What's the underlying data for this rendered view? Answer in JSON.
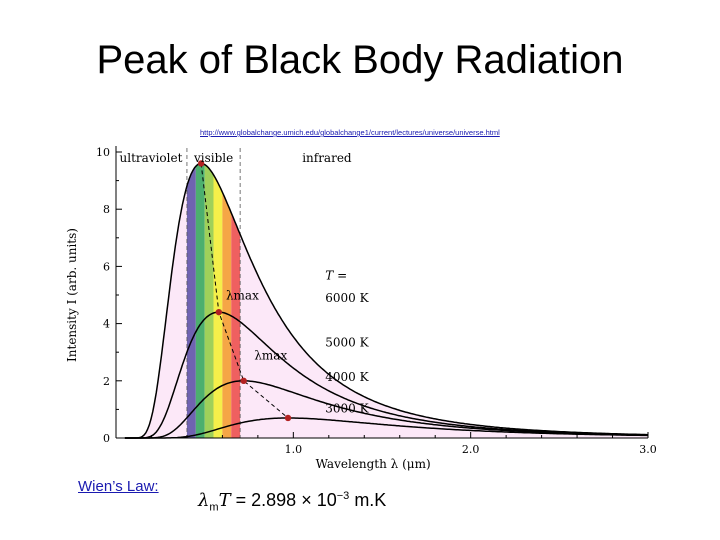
{
  "slide": {
    "title": "Peak of Black Body Radiation",
    "source_url": "http://www.globalchange.umich.edu/globalchange1/current/lectures/universe/universe.html",
    "law_label": "Wien’s Law:",
    "formula": {
      "symbol": "λ",
      "subscript": "m",
      "variable": "T",
      "equals": "= 2.898",
      "times": "× 10",
      "exponent": "−3",
      "unit": "m.K"
    }
  },
  "colors": {
    "background_fill": "#fce8f8",
    "curve": "#000000",
    "peak_marker": "#b22222",
    "spectrum": [
      "#6f63b0",
      "#4caf6e",
      "#9fd05a",
      "#f5ef4a",
      "#f5a646",
      "#ef6060"
    ]
  },
  "chart_data": {
    "type": "line",
    "title": "",
    "xlabel": "Wavelength λ (μm)",
    "ylabel": "Intensity I (arb. units)",
    "xlim": [
      0,
      3.0
    ],
    "ylim": [
      0,
      10
    ],
    "x_ticks": [
      "1.0",
      "2.0",
      "3.0"
    ],
    "y_ticks": [
      "0",
      "2",
      "4",
      "6",
      "8",
      "10"
    ],
    "regions": [
      "ultraviolet",
      "visible",
      "infrared"
    ],
    "legend_title": "T =",
    "series": [
      {
        "name": "6000 K",
        "peak_x": 0.48,
        "peak_y": 9.6
      },
      {
        "name": "5000 K",
        "peak_x": 0.58,
        "peak_y": 4.4
      },
      {
        "name": "4000 K",
        "peak_x": 0.72,
        "peak_y": 2.0
      },
      {
        "name": "3000 K",
        "peak_x": 0.97,
        "peak_y": 0.7
      }
    ],
    "peak_label": "λmax",
    "peak_labels_count": 2
  }
}
